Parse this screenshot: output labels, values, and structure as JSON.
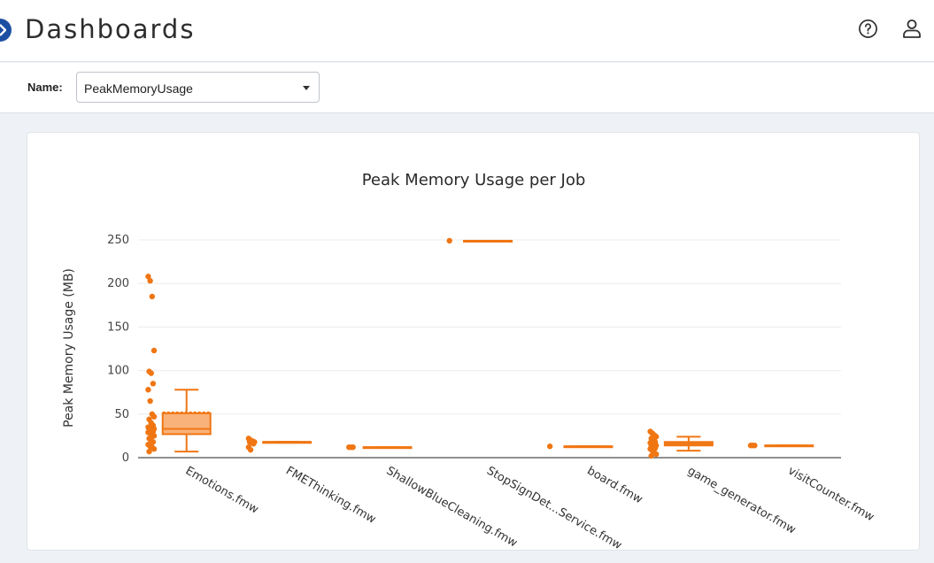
{
  "header": {
    "title": "Dashboards",
    "help_icon": "help-circle-icon",
    "user_icon": "user-icon",
    "nav_icon": "chevron-right-icon"
  },
  "filter": {
    "name_label": "Name:",
    "selected": "PeakMemoryUsage"
  },
  "colors": {
    "accent": "#f07613",
    "box_fill": "#f9b27a",
    "nav": "#1c4fa1"
  },
  "chart_data": {
    "type": "box",
    "title": "Peak Memory Usage per Job",
    "ylabel": "Peak Memory Usage (MB)",
    "xlabel": "",
    "ylim": [
      0,
      260
    ],
    "yticks": [
      0,
      50,
      100,
      150,
      200,
      250
    ],
    "grid": true,
    "categories": [
      "Emotions.fmw",
      "FMEThinking.fmw",
      "ShallowBlueCleaning.fmw",
      "StopSignDet...Service.fmw",
      "board.fmw",
      "game_generator.fmw",
      "visitCounter.fmw"
    ],
    "series": [
      {
        "category": "Emotions.fmw",
        "min": 7,
        "q1": 27,
        "median": 33,
        "q3": 51,
        "max": 78,
        "mean": 52,
        "points": [
          208,
          203,
          185,
          123,
          99,
          97,
          85,
          78,
          65,
          50,
          47,
          44,
          40,
          37,
          35,
          34,
          33,
          33,
          32,
          31,
          30,
          29,
          28,
          27,
          25,
          22,
          20,
          18,
          15,
          13,
          12,
          10,
          7
        ]
      },
      {
        "category": "FMEThinking.fmw",
        "min": 18,
        "q1": 18,
        "median": 18,
        "q3": 18,
        "max": 18,
        "mean": 18,
        "points": [
          22,
          20,
          19,
          18,
          18,
          17,
          16,
          12,
          9
        ]
      },
      {
        "category": "ShallowBlueCleaning.fmw",
        "min": 12,
        "q1": 12,
        "median": 12,
        "q3": 12,
        "max": 12,
        "mean": 12,
        "points": [
          12,
          12,
          12
        ]
      },
      {
        "category": "StopSignDet...Service.fmw",
        "min": 249,
        "q1": 249,
        "median": 249,
        "q3": 249,
        "max": 249,
        "mean": 249,
        "points": [
          249
        ]
      },
      {
        "category": "board.fmw",
        "min": 13,
        "q1": 13,
        "median": 13,
        "q3": 13,
        "max": 13,
        "mean": 13,
        "points": [
          13
        ]
      },
      {
        "category": "game_generator.fmw",
        "min": 8,
        "q1": 14,
        "median": 16,
        "q3": 18,
        "max": 24,
        "mean": 16,
        "points": [
          30,
          28,
          26,
          24,
          22,
          20,
          18,
          17,
          16,
          15,
          14,
          13,
          12,
          11,
          10,
          8,
          6,
          4,
          2
        ]
      },
      {
        "category": "visitCounter.fmw",
        "min": 14,
        "q1": 14,
        "median": 14,
        "q3": 14,
        "max": 14,
        "mean": 14,
        "points": [
          14,
          14,
          14
        ]
      }
    ]
  }
}
